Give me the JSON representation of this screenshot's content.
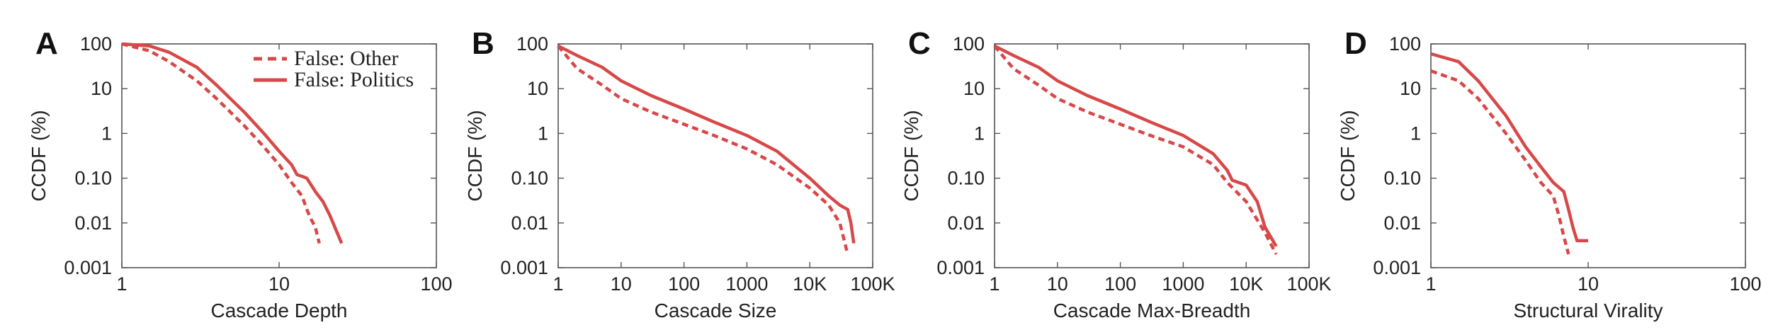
{
  "style": {
    "series_color": "#d84848",
    "axis_color": "#555555",
    "text_color": "#222222"
  },
  "legend": {
    "position": "top-right of panel A",
    "items": [
      "False: Other",
      "False: Politics"
    ]
  },
  "chart_data": [
    {
      "panel": "A",
      "type": "line",
      "xscale": "log",
      "yscale": "log",
      "xlabel": "Cascade Depth",
      "ylabel": "CCDF (%)",
      "xlim": [
        1,
        100
      ],
      "ylim": [
        0.001,
        100
      ],
      "xticks": [
        1,
        10,
        100
      ],
      "xtick_labels": [
        "1",
        "10",
        "100"
      ],
      "yticks": [
        0.001,
        0.01,
        0.1,
        1,
        10,
        100
      ],
      "ytick_labels": [
        "0.001",
        "0.01",
        "0.10",
        "1",
        "10",
        "100"
      ],
      "series": [
        {
          "name": "False: Other",
          "style": "dashed",
          "x": [
            1,
            1.5,
            2,
            3,
            4,
            6,
            8,
            10,
            12,
            14,
            15,
            16,
            17,
            18
          ],
          "y": [
            100,
            70,
            40,
            15,
            6,
            1.5,
            0.5,
            0.2,
            0.08,
            0.04,
            0.02,
            0.012,
            0.008,
            0.0035
          ]
        },
        {
          "name": "False: Politics",
          "style": "solid",
          "x": [
            1,
            1.5,
            2,
            3,
            4,
            6,
            8,
            10,
            12,
            13,
            14,
            15,
            17,
            19,
            21,
            23,
            25
          ],
          "y": [
            100,
            90,
            65,
            30,
            12,
            3,
            1,
            0.4,
            0.2,
            0.12,
            0.11,
            0.1,
            0.05,
            0.03,
            0.015,
            0.007,
            0.0035
          ]
        }
      ]
    },
    {
      "panel": "B",
      "type": "line",
      "xscale": "log",
      "yscale": "log",
      "xlabel": "Cascade Size",
      "ylabel": "CCDF (%)",
      "xlim": [
        1,
        100000
      ],
      "ylim": [
        0.001,
        100
      ],
      "xticks": [
        1,
        10,
        100,
        1000,
        10000,
        100000
      ],
      "xtick_labels": [
        "1",
        "10",
        "100",
        "1000",
        "10K",
        "100K"
      ],
      "yticks": [
        0.001,
        0.01,
        0.1,
        1,
        10,
        100
      ],
      "ytick_labels": [
        "0.001",
        "0.01",
        "0.10",
        "1",
        "10",
        "100"
      ],
      "series": [
        {
          "name": "False: Other",
          "style": "dashed",
          "x": [
            1,
            2,
            5,
            10,
            30,
            100,
            300,
            1000,
            3000,
            10000,
            20000,
            30000,
            40000
          ],
          "y": [
            90,
            28,
            12,
            6,
            3,
            1.6,
            0.9,
            0.45,
            0.2,
            0.06,
            0.025,
            0.01,
            0.002
          ]
        },
        {
          "name": "False: Politics",
          "style": "solid",
          "x": [
            1,
            2,
            5,
            10,
            30,
            100,
            300,
            1000,
            3000,
            10000,
            20000,
            30000,
            40000,
            45000,
            50000
          ],
          "y": [
            90,
            55,
            30,
            15,
            7,
            3.5,
            1.8,
            0.9,
            0.4,
            0.1,
            0.04,
            0.025,
            0.02,
            0.01,
            0.0035
          ]
        }
      ]
    },
    {
      "panel": "C",
      "type": "line",
      "xscale": "log",
      "yscale": "log",
      "xlabel": "Cascade Max-Breadth",
      "ylabel": "CCDF (%)",
      "xlim": [
        1,
        100000
      ],
      "ylim": [
        0.001,
        100
      ],
      "xticks": [
        1,
        10,
        100,
        1000,
        10000,
        100000
      ],
      "xtick_labels": [
        "1",
        "10",
        "100",
        "1000",
        "10K",
        "100K"
      ],
      "yticks": [
        0.001,
        0.01,
        0.1,
        1,
        10,
        100
      ],
      "ytick_labels": [
        "0.001",
        "0.01",
        "0.10",
        "1",
        "10",
        "100"
      ],
      "series": [
        {
          "name": "False: Other",
          "style": "dashed",
          "x": [
            1,
            2,
            5,
            10,
            30,
            100,
            300,
            1000,
            3000,
            5000,
            10000,
            20000,
            30000
          ],
          "y": [
            90,
            28,
            12,
            6,
            3,
            1.6,
            0.9,
            0.5,
            0.2,
            0.08,
            0.03,
            0.006,
            0.002
          ]
        },
        {
          "name": "False: Politics",
          "style": "solid",
          "x": [
            1,
            2,
            5,
            10,
            30,
            100,
            300,
            1000,
            3000,
            5000,
            6000,
            10000,
            15000,
            20000,
            30000
          ],
          "y": [
            90,
            55,
            30,
            15,
            7,
            3.5,
            1.8,
            0.9,
            0.35,
            0.15,
            0.09,
            0.07,
            0.03,
            0.008,
            0.003
          ]
        }
      ]
    },
    {
      "panel": "D",
      "type": "line",
      "xscale": "log",
      "yscale": "log",
      "xlabel": "Structural Virality",
      "ylabel": "CCDF (%)",
      "xlim": [
        1,
        100
      ],
      "ylim": [
        0.001,
        100
      ],
      "xticks": [
        1,
        10,
        100
      ],
      "xtick_labels": [
        "1",
        "10",
        "100"
      ],
      "yticks": [
        0.001,
        0.01,
        0.1,
        1,
        10,
        100
      ],
      "ytick_labels": [
        "0.001",
        "0.01",
        "0.10",
        "1",
        "10",
        "100"
      ],
      "series": [
        {
          "name": "False: Other",
          "style": "dashed",
          "x": [
            1,
            1.5,
            2,
            3,
            4,
            5,
            6,
            6.5,
            7,
            7.5
          ],
          "y": [
            25,
            15,
            6,
            1,
            0.25,
            0.08,
            0.04,
            0.015,
            0.005,
            0.002
          ]
        },
        {
          "name": "False: Politics",
          "style": "solid",
          "x": [
            1,
            1.5,
            2,
            3,
            4,
            5,
            6,
            7,
            7.5,
            8,
            8.5,
            9,
            10
          ],
          "y": [
            60,
            40,
            15,
            2.5,
            0.5,
            0.18,
            0.08,
            0.05,
            0.02,
            0.008,
            0.004,
            0.004,
            0.004
          ]
        }
      ]
    }
  ]
}
